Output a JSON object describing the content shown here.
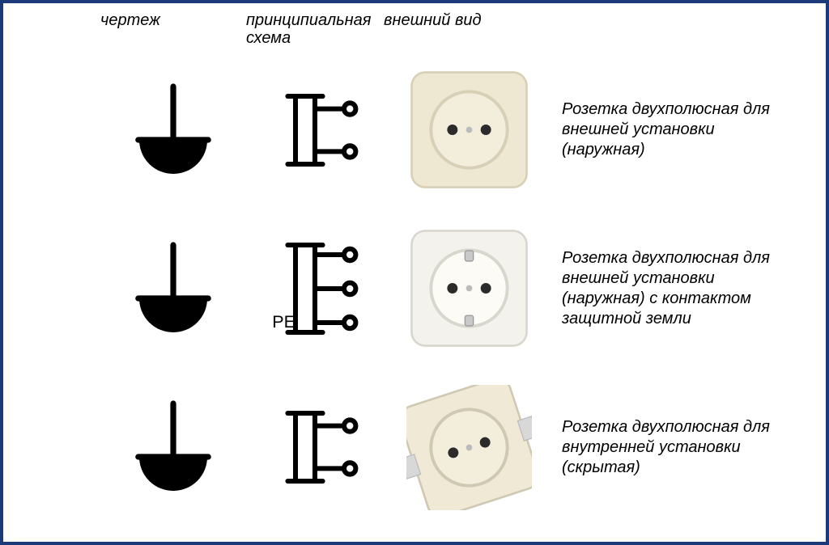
{
  "frame": {
    "border_color": "#1a3a7a",
    "background": "#ffffff"
  },
  "headers": {
    "col1": "чертеж",
    "col2": "принципиальная схема",
    "col3": "внешний вид",
    "font_style": "italic",
    "font_size_pt": 15
  },
  "rows": [
    {
      "drawing": {
        "type": "socket-surface",
        "stroke": "#000000",
        "stroke_width": 6
      },
      "schematic": {
        "pins": 2,
        "pe": false,
        "pe_label": "",
        "stroke": "#000000",
        "stroke_width": 5
      },
      "appearance": {
        "type": "socket-eu-c",
        "plate_color": "#eee7d2",
        "plate_shadow": "#d7cfb6",
        "face_color": "#f3eedc",
        "hole_color": "#2b2b2b",
        "has_ground_clips": false,
        "rotated": false
      },
      "description": "Розетка двухполюсная для внешней установки (наружная)"
    },
    {
      "drawing": {
        "type": "socket-surface",
        "stroke": "#000000",
        "stroke_width": 6
      },
      "schematic": {
        "pins": 3,
        "pe": true,
        "pe_label": "PE",
        "stroke": "#000000",
        "stroke_width": 5
      },
      "appearance": {
        "type": "socket-schuko",
        "plate_color": "#f4f2ec",
        "plate_shadow": "#d9d6cd",
        "face_color": "#fcfbf6",
        "hole_color": "#2b2b2b",
        "has_ground_clips": true,
        "rotated": false
      },
      "description": "Розетка двухполюсная для внешней установки (наружная) с контактом защитной земли"
    },
    {
      "drawing": {
        "type": "socket-flush",
        "stroke": "#000000",
        "stroke_width": 6
      },
      "schematic": {
        "pins": 2,
        "pe": false,
        "pe_label": "",
        "stroke": "#000000",
        "stroke_width": 5
      },
      "appearance": {
        "type": "socket-eu-c",
        "plate_color": "#efe9d6",
        "plate_shadow": "#cfc8b2",
        "face_color": "#f3eedc",
        "hole_color": "#2b2b2b",
        "has_ground_clips": false,
        "rotated": true
      },
      "description": "Розетка двухполюсная для внутренней установки (скрытая)"
    }
  ]
}
